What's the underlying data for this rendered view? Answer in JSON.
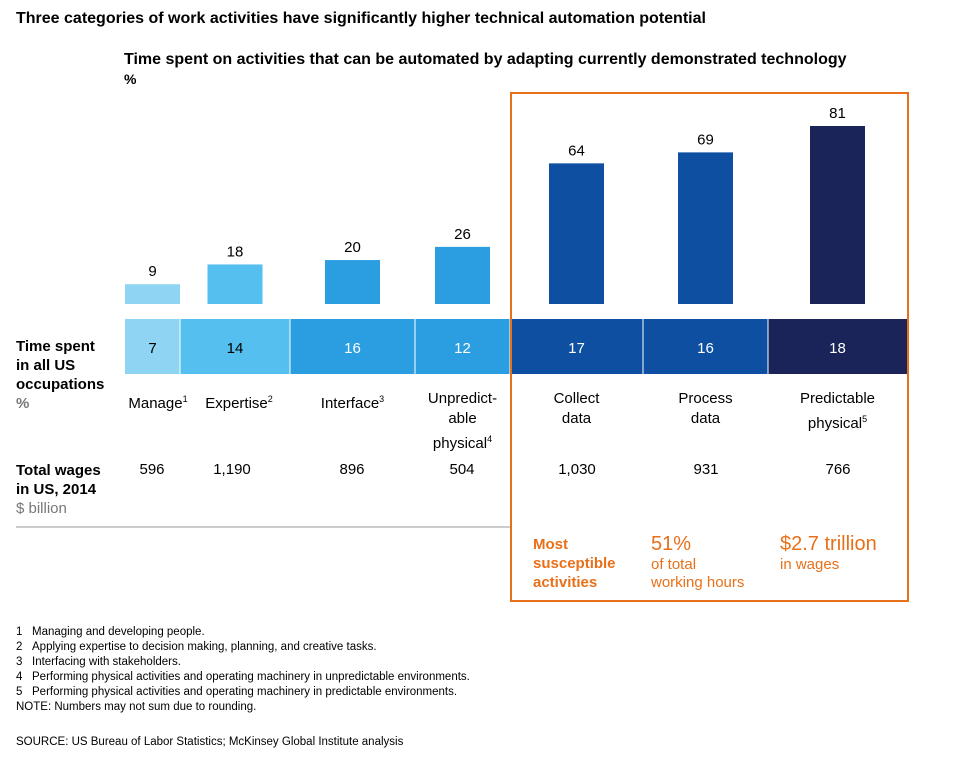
{
  "headline": "Three categories of work activities have significantly higher technical automation potential",
  "chart_data": {
    "type": "bar",
    "title": "Time spent on activities that can be automated by adapting currently demonstrated technology",
    "ylabel": "%",
    "ylim": [
      0,
      81
    ],
    "categories": [
      "Manage",
      "Expertise",
      "Interface",
      "Unpredictable physical",
      "Collect data",
      "Process data",
      "Predictable physical"
    ],
    "values": [
      9,
      18,
      20,
      26,
      64,
      69,
      81
    ],
    "time_spent": [
      7,
      14,
      16,
      12,
      17,
      16,
      18
    ],
    "wages": [
      "596",
      "1,190",
      "896",
      "504",
      "1,030",
      "931",
      "766"
    ],
    "colors": [
      "#8fd4f2",
      "#55bff0",
      "#2a9ee0",
      "#2a9ee0",
      "#0e4fa1",
      "#0e4fa1",
      "#1a2458"
    ],
    "time_colors": [
      "#8fd4f2",
      "#55bff0",
      "#2a9ee0",
      "#2a9ee0",
      "#0e4fa1",
      "#0e4fa1",
      "#1a2458"
    ],
    "highlight_color": "#e8701a"
  },
  "cat_labels": [
    {
      "lines": [
        "Manage"
      ],
      "sup": "1"
    },
    {
      "lines": [
        "Expertise"
      ],
      "sup": "2"
    },
    {
      "lines": [
        "Interface"
      ],
      "sup": "3"
    },
    {
      "lines": [
        "Unpredict-",
        "able",
        "physical"
      ],
      "sup": "4"
    },
    {
      "lines": [
        "Collect",
        "data"
      ],
      "sup": ""
    },
    {
      "lines": [
        "Process",
        "data"
      ],
      "sup": ""
    },
    {
      "lines": [
        "Predictable",
        "physical"
      ],
      "sup": "5"
    }
  ],
  "row_time": {
    "label_lines": [
      "Time spent",
      "in all US",
      "occupations"
    ],
    "unit": "%"
  },
  "row_wages": {
    "label_lines": [
      "Total wages",
      "in US, 2014"
    ],
    "unit": "$ billion"
  },
  "callouts": {
    "most": [
      "Most",
      "susceptible",
      "activities"
    ],
    "hours_big": "51%",
    "hours_small": [
      "of total",
      "working hours"
    ],
    "wages_big": "$2.7 trillion",
    "wages_small": "in wages"
  },
  "footnotes": [
    {
      "num": "1",
      "text": "Managing and developing people."
    },
    {
      "num": "2",
      "text": "Applying expertise to decision making, planning, and creative tasks."
    },
    {
      "num": "3",
      "text": "Interfacing with stakeholders."
    },
    {
      "num": "4",
      "text": "Performing physical activities and operating machinery in unpredictable environments."
    },
    {
      "num": "5",
      "text": "Performing physical activities and operating machinery in predictable environments."
    }
  ],
  "note": "NOTE: Numbers may not sum due to rounding.",
  "source": "SOURCE:  US Bureau of Labor Statistics; McKinsey Global Institute analysis"
}
